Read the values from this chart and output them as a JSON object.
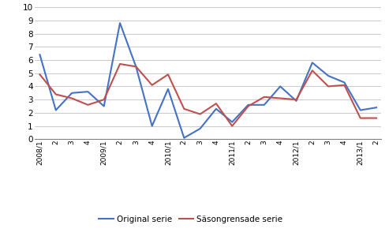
{
  "x_labels": [
    "2008/1",
    "2",
    "3",
    "4",
    "2009/1",
    "2",
    "3",
    "4",
    "2010/1",
    "2",
    "3",
    "4",
    "2011/1",
    "2",
    "3",
    "4",
    "2012/1",
    "2",
    "3",
    "4",
    "2013/1",
    "2"
  ],
  "original": [
    6.4,
    2.2,
    3.5,
    3.6,
    2.5,
    8.8,
    5.5,
    1.0,
    3.8,
    0.1,
    0.8,
    2.3,
    1.3,
    2.6,
    2.6,
    4.0,
    2.9,
    5.8,
    4.8,
    4.3,
    2.2,
    2.4
  ],
  "seasonally_adjusted": [
    4.9,
    3.4,
    3.1,
    2.6,
    3.0,
    5.7,
    5.5,
    4.1,
    4.9,
    2.3,
    1.9,
    2.7,
    1.0,
    2.5,
    3.2,
    3.1,
    3.0,
    5.2,
    4.0,
    4.1,
    1.6,
    1.6
  ],
  "original_color": "#4472C4",
  "seasonal_color": "#C0504D",
  "ylim": [
    0,
    10
  ],
  "yticks": [
    0,
    1,
    2,
    3,
    4,
    5,
    6,
    7,
    8,
    9,
    10
  ],
  "legend_original": "Original serie",
  "legend_seasonal": "Säsongrensade serie",
  "line_width": 1.5,
  "bg_color": "#ffffff",
  "grid_color": "#C0C0C0",
  "spine_color": "#808080"
}
